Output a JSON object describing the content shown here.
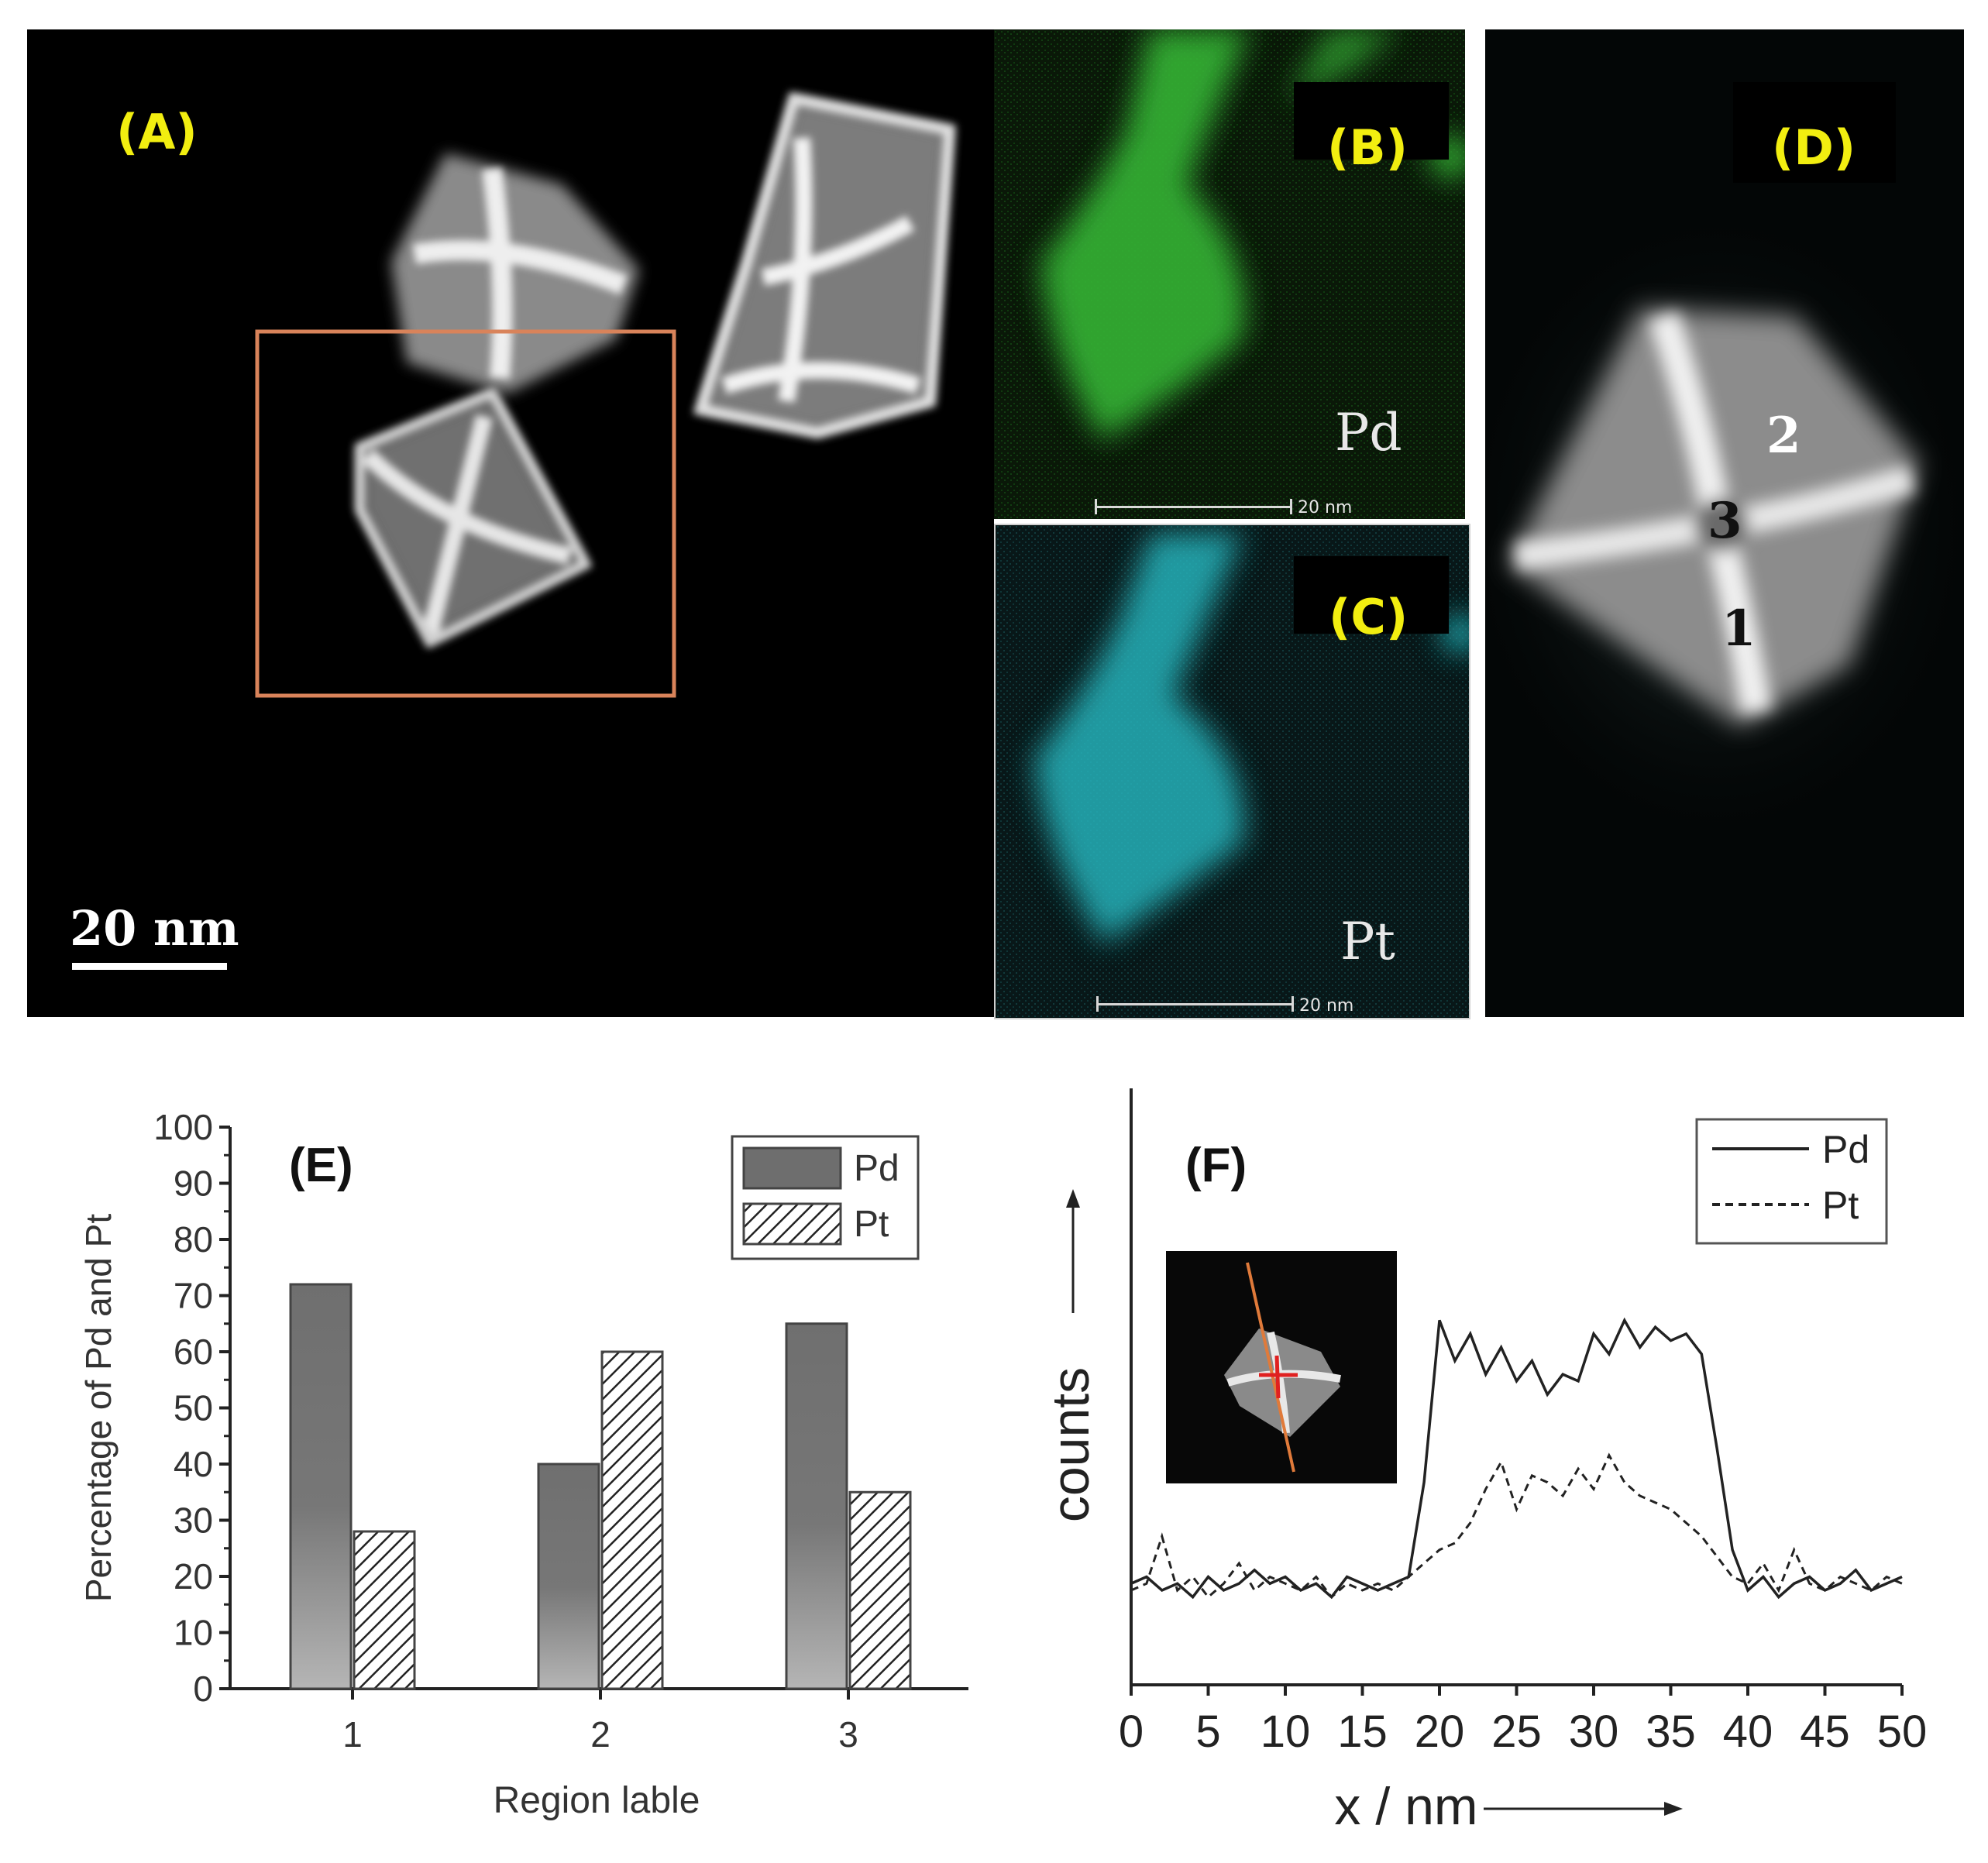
{
  "panels": {
    "a": {
      "label": "(A)",
      "scale_bar": "20 nm"
    },
    "b": {
      "label": "(B)",
      "element": "Pd",
      "scale_bar": "20 nm"
    },
    "c": {
      "label": "(C)",
      "element": "Pt",
      "scale_bar": "20 nm"
    },
    "d": {
      "label": "(D)",
      "regions": [
        "2",
        "3",
        "1"
      ]
    }
  },
  "colors": {
    "pd_map": "#33b233",
    "pt_map": "#27b0b8",
    "panel_label": "#f2ee10",
    "roi_box": "#d9835a"
  },
  "chart_data": [
    {
      "type": "bar",
      "panel_label": "(E)",
      "xlabel": "Region lable",
      "ylabel": "Percentage of Pd and Pt",
      "categories": [
        "1",
        "2",
        "3"
      ],
      "ylim": [
        0,
        100
      ],
      "yticks": [
        0,
        10,
        20,
        30,
        40,
        50,
        60,
        70,
        80,
        90,
        100
      ],
      "legend": "top-right",
      "series": [
        {
          "name": "Pd",
          "values": [
            72,
            40,
            65
          ]
        },
        {
          "name": "Pt",
          "values": [
            28,
            60,
            35
          ]
        }
      ]
    },
    {
      "type": "line",
      "panel_label": "(F)",
      "xlabel": "x / nm",
      "ylabel": "counts",
      "xlim": [
        0,
        50
      ],
      "xticks": [
        0,
        5,
        10,
        15,
        20,
        25,
        30,
        35,
        40,
        45,
        50
      ],
      "legend": "top-right",
      "series": [
        {
          "name": "Pd",
          "x": [
            0,
            1,
            2,
            3,
            4,
            5,
            6,
            7,
            8,
            9,
            10,
            11,
            12,
            13,
            14,
            15,
            16,
            17,
            18,
            19,
            20,
            21,
            22,
            23,
            24,
            25,
            26,
            27,
            28,
            29,
            30,
            31,
            32,
            33,
            34,
            35,
            36,
            37,
            38,
            39,
            40,
            41,
            42,
            43,
            44,
            45,
            46,
            47,
            48,
            49,
            50
          ],
          "y": [
            15,
            16,
            14,
            15,
            13,
            16,
            14,
            15,
            17,
            15,
            16,
            14,
            15,
            13,
            16,
            15,
            14,
            15,
            16,
            30,
            54,
            48,
            52,
            46,
            50,
            45,
            48,
            43,
            46,
            45,
            52,
            49,
            54,
            50,
            53,
            51,
            52,
            49,
            35,
            20,
            14,
            16,
            13,
            15,
            16,
            14,
            15,
            17,
            14,
            15,
            16
          ]
        },
        {
          "name": "Pt",
          "x": [
            0,
            1,
            2,
            3,
            4,
            5,
            6,
            7,
            8,
            9,
            10,
            11,
            12,
            13,
            14,
            15,
            16,
            17,
            18,
            19,
            20,
            21,
            22,
            23,
            24,
            25,
            26,
            27,
            28,
            29,
            30,
            31,
            32,
            33,
            34,
            35,
            36,
            37,
            38,
            39,
            40,
            41,
            42,
            43,
            44,
            45,
            46,
            47,
            48,
            49,
            50
          ],
          "y": [
            14,
            15,
            22,
            14,
            16,
            13,
            15,
            18,
            14,
            16,
            15,
            14,
            16,
            13,
            15,
            14,
            15,
            14,
            16,
            18,
            20,
            21,
            24,
            29,
            33,
            26,
            31,
            30,
            28,
            32,
            29,
            34,
            30,
            28,
            27,
            26,
            24,
            22,
            19,
            16,
            15,
            18,
            14,
            20,
            15,
            14,
            16,
            15,
            14,
            16,
            15
          ]
        }
      ]
    }
  ]
}
